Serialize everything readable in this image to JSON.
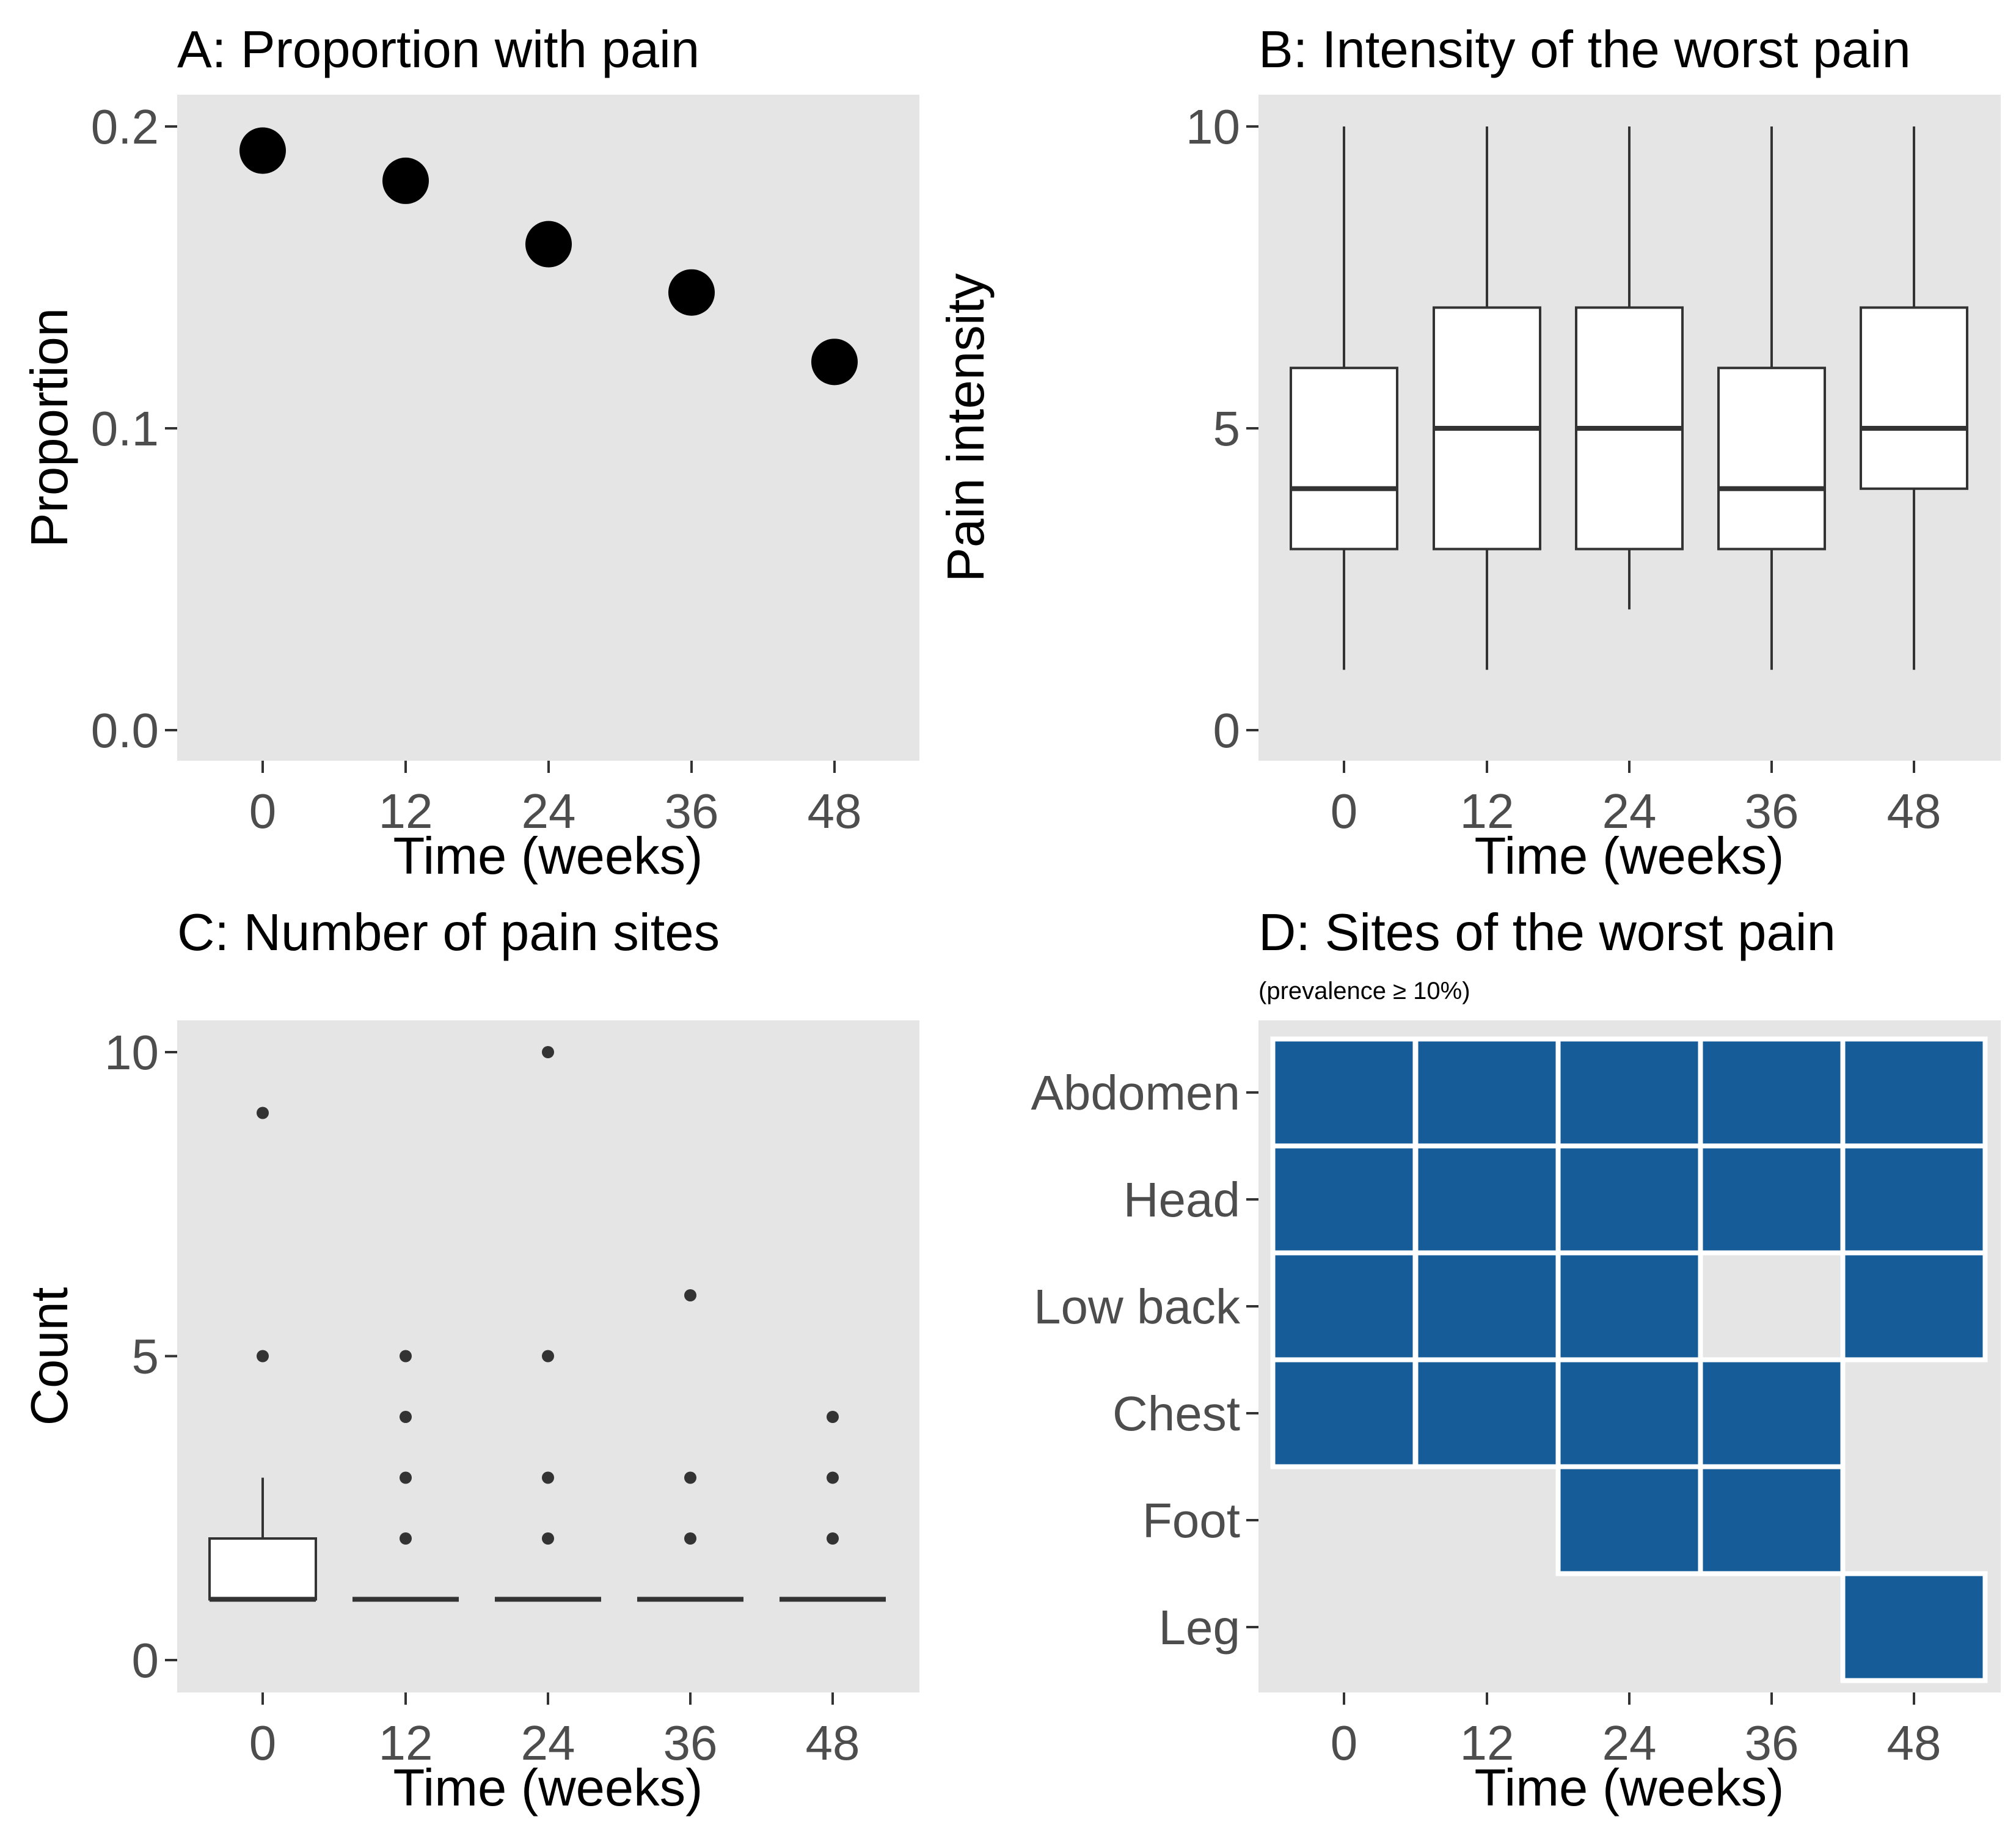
{
  "chart_data": [
    {
      "id": "A",
      "type": "scatter",
      "title": "A: Proportion with pain",
      "xlabel": "Time (weeks)",
      "ylabel": "Proportion",
      "x": [
        0,
        12,
        24,
        36,
        48
      ],
      "x_tick_labels": [
        "0",
        "12",
        "24",
        "36",
        "48"
      ],
      "y": [
        0.192,
        0.182,
        0.161,
        0.145,
        0.122
      ],
      "y_ticks": [
        0.0,
        0.1,
        0.2
      ],
      "y_tick_labels": [
        "0.0",
        "0.1",
        "0.2"
      ],
      "ylim": [
        -0.01,
        0.21
      ],
      "xlim": [
        -6,
        56
      ],
      "grid": false,
      "point_color": "#000000"
    },
    {
      "id": "B",
      "type": "box",
      "title": "B: Intensity of the worst pain",
      "xlabel": "Time (weeks)",
      "ylabel": "Pain intensity",
      "categories": [
        "0",
        "12",
        "24",
        "36",
        "48"
      ],
      "boxes": [
        {
          "whisker_low": 1,
          "q1": 3,
          "median": 4,
          "q3": 6,
          "whisker_high": 10
        },
        {
          "whisker_low": 1,
          "q1": 3,
          "median": 5,
          "q3": 7,
          "whisker_high": 10
        },
        {
          "whisker_low": 2,
          "q1": 3,
          "median": 5,
          "q3": 7,
          "whisker_high": 10
        },
        {
          "whisker_low": 1,
          "q1": 3,
          "median": 4,
          "q3": 6,
          "whisker_high": 10
        },
        {
          "whisker_low": 1,
          "q1": 4,
          "median": 5,
          "q3": 7,
          "whisker_high": 10
        }
      ],
      "y_ticks": [
        0,
        5,
        10
      ],
      "y_tick_labels": [
        "0",
        "5",
        "10"
      ],
      "ylim": [
        -0.5,
        10.5
      ],
      "grid": false
    },
    {
      "id": "C",
      "type": "box",
      "title": "C: Number of pain sites",
      "xlabel": "Time (weeks)",
      "ylabel": "Count",
      "categories": [
        "0",
        "12",
        "24",
        "36",
        "48"
      ],
      "boxes": [
        {
          "whisker_low": 1,
          "q1": 1,
          "median": 1,
          "q3": 2,
          "whisker_high": 3,
          "outliers": [
            5,
            9
          ]
        },
        {
          "whisker_low": 1,
          "q1": 1,
          "median": 1,
          "q3": 1,
          "whisker_high": 1,
          "outliers": [
            2,
            3,
            4,
            5
          ]
        },
        {
          "whisker_low": 1,
          "q1": 1,
          "median": 1,
          "q3": 1,
          "whisker_high": 1,
          "outliers": [
            2,
            3,
            5,
            10
          ]
        },
        {
          "whisker_low": 1,
          "q1": 1,
          "median": 1,
          "q3": 1,
          "whisker_high": 1,
          "outliers": [
            2,
            3,
            6
          ]
        },
        {
          "whisker_low": 1,
          "q1": 1,
          "median": 1,
          "q3": 1,
          "whisker_high": 1,
          "outliers": [
            2,
            3,
            4
          ]
        }
      ],
      "y_ticks": [
        0,
        5,
        10
      ],
      "y_tick_labels": [
        "0",
        "5",
        "10"
      ],
      "ylim": [
        -0.5,
        10.5
      ],
      "grid": false
    },
    {
      "id": "D",
      "type": "heatmap",
      "title": "D: Sites of the worst pain",
      "subtitle": "(prevalence  ≥ 10%)",
      "xlabel": "Time (weeks)",
      "ylabel": "",
      "x_categories": [
        "0",
        "12",
        "24",
        "36",
        "48"
      ],
      "y_categories": [
        "Abdomen",
        "Head",
        "Low back",
        "Chest",
        "Foot",
        "Leg"
      ],
      "matrix": [
        [
          1,
          1,
          1,
          1,
          1
        ],
        [
          1,
          1,
          1,
          1,
          1
        ],
        [
          1,
          1,
          1,
          0,
          1
        ],
        [
          1,
          1,
          1,
          1,
          0
        ],
        [
          0,
          0,
          1,
          1,
          0
        ],
        [
          0,
          0,
          0,
          0,
          1
        ]
      ],
      "fill_color": "#165c98",
      "grid": false
    }
  ]
}
